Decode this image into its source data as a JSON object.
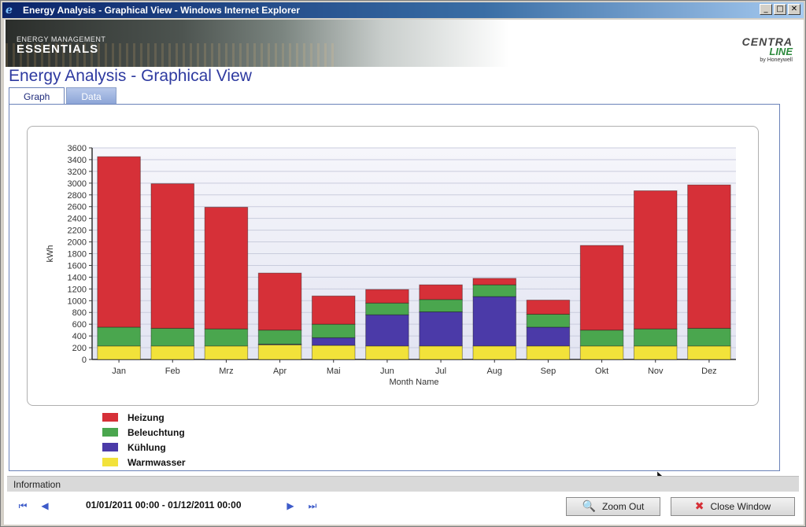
{
  "window": {
    "title": "Energy Analysis - Graphical View - Windows Internet Explorer",
    "buttons": [
      "_",
      "□",
      "✕"
    ]
  },
  "banner": {
    "line1": "ENERGY MANAGEMENT",
    "line2": "ESSENTIALS"
  },
  "logo": {
    "top": "CENTRA",
    "mid": "LINE",
    "sub": "by Honeywell"
  },
  "page": {
    "title": "Energy Analysis - Graphical View"
  },
  "tabs": [
    {
      "label": "Graph",
      "active": true
    },
    {
      "label": "Data",
      "active": false
    }
  ],
  "chart_data": {
    "type": "bar",
    "stacked": true,
    "xlabel": "Month Name",
    "ylabel": "kWh",
    "ylim": [
      0,
      3600
    ],
    "ytick_step": 200,
    "grid": true,
    "categories": [
      "Jan",
      "Feb",
      "Mrz",
      "Apr",
      "Mai",
      "Jun",
      "Jul",
      "Aug",
      "Sep",
      "Okt",
      "Nov",
      "Dez"
    ],
    "series": [
      {
        "name": "Warmwasser",
        "color": "#f2e23a",
        "values": [
          230,
          230,
          230,
          250,
          240,
          230,
          230,
          230,
          230,
          230,
          230,
          230
        ]
      },
      {
        "name": "Kühlung",
        "color": "#4b3aa8",
        "values": [
          0,
          0,
          0,
          10,
          130,
          530,
          580,
          840,
          320,
          0,
          0,
          0
        ]
      },
      {
        "name": "Beleuchtung",
        "color": "#4aa64e",
        "values": [
          320,
          300,
          290,
          240,
          230,
          200,
          210,
          200,
          220,
          270,
          290,
          300
        ]
      },
      {
        "name": "Heizung",
        "color": "#d63038",
        "values": [
          2900,
          2460,
          2070,
          970,
          480,
          230,
          250,
          110,
          240,
          1440,
          2350,
          2440
        ]
      }
    ],
    "legend": [
      "Heizung",
      "Beleuchtung",
      "Kühlung",
      "Warmwasser"
    ],
    "legend_position": "bottom-left"
  },
  "info": {
    "label": "Information"
  },
  "nav": {
    "first": "⏮",
    "prev": "◀",
    "next": "▶",
    "last": "⏭",
    "range": "01/01/2011 00:00 - 01/12/2011 00:00"
  },
  "buttons": {
    "zoom_out": "Zoom Out",
    "close": "Close Window"
  }
}
